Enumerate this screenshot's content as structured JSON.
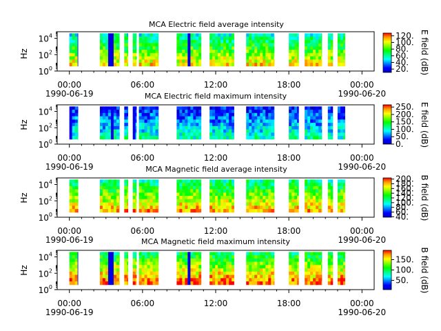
{
  "colors": {
    "colormap": [
      "#0000c8",
      "#0000ff",
      "#0080ff",
      "#00ffff",
      "#00ff80",
      "#00ff00",
      "#80ff00",
      "#ffff00",
      "#ffa000",
      "#ff0000"
    ]
  },
  "chart_data": [
    {
      "type": "heatmap",
      "title": "MCA  Electric field average intensity",
      "ylabel": "Hz",
      "y_scale": "log",
      "y_ticks": [
        {
          "base": "10",
          "exp": "4",
          "value": 10000
        },
        {
          "base": "10",
          "exp": "2",
          "value": 100
        },
        {
          "base": "10",
          "exp": "0",
          "value": 1
        }
      ],
      "colorbar_label": "E field (dB)",
      "colorbar_ticks": [
        "120.",
        "100.",
        "80.",
        "60.",
        "40.",
        "20."
      ],
      "colorbar_tick_values": [
        120,
        100,
        80,
        60,
        40,
        20
      ],
      "clim": [
        10,
        128
      ],
      "bias": 0.0
    },
    {
      "type": "heatmap",
      "title": "MCA  Electric field maximum intensity",
      "ylabel": "Hz",
      "y_scale": "log",
      "y_ticks": [
        {
          "base": "10",
          "exp": "4",
          "value": 10000
        },
        {
          "base": "10",
          "exp": "2",
          "value": 100
        },
        {
          "base": "10",
          "exp": "0",
          "value": 1
        }
      ],
      "colorbar_label": "E field (dB)",
      "colorbar_ticks": [
        "250.",
        "200.",
        "150.",
        "100.",
        "50.",
        "0."
      ],
      "colorbar_tick_values": [
        250,
        200,
        150,
        100,
        50,
        0
      ],
      "clim": [
        0,
        265
      ],
      "bias": -0.28
    },
    {
      "type": "heatmap",
      "title": "MCA  Magnetic field average intensity",
      "ylabel": "Hz",
      "y_scale": "log",
      "y_ticks": [
        {
          "base": "10",
          "exp": "4",
          "value": 10000
        },
        {
          "base": "10",
          "exp": "2",
          "value": 100
        },
        {
          "base": "10",
          "exp": "0",
          "value": 1
        }
      ],
      "colorbar_label": "B field (dB)",
      "colorbar_ticks": [
        "200.",
        "180.",
        "160.",
        "140.",
        "120.",
        "100.",
        "80.",
        "60.",
        "40."
      ],
      "colorbar_tick_values": [
        200,
        180,
        160,
        140,
        120,
        100,
        80,
        60,
        40
      ],
      "clim": [
        38,
        205
      ],
      "bias": 0.05
    },
    {
      "type": "heatmap",
      "title": "MCA  Magnetic field maximum intensity",
      "ylabel": "Hz",
      "y_scale": "log",
      "y_ticks": [
        {
          "base": "10",
          "exp": "4",
          "value": 10000
        },
        {
          "base": "10",
          "exp": "2",
          "value": 100
        },
        {
          "base": "10",
          "exp": "0",
          "value": 1
        }
      ],
      "colorbar_label": "B field (dB)",
      "colorbar_ticks": [
        "150.",
        "100.",
        "50."
      ],
      "colorbar_tick_values": [
        150,
        100,
        50
      ],
      "clim": [
        5,
        195
      ],
      "bias": 0.1
    }
  ],
  "x_axis": {
    "range_hours": [
      -1,
      25
    ],
    "major_ticks": [
      {
        "hour": 0,
        "label": "00:00",
        "date": "1990-06-19"
      },
      {
        "hour": 6,
        "label": "06:00",
        "date": ""
      },
      {
        "hour": 12,
        "label": "12:00",
        "date": ""
      },
      {
        "hour": 18,
        "label": "18:00",
        "date": ""
      },
      {
        "hour": 24,
        "label": "00:00",
        "date": "1990-06-20"
      }
    ]
  },
  "data_segments_hours": [
    [
      0,
      0.7
    ],
    [
      2.5,
      4.1
    ],
    [
      4.5,
      4.8
    ],
    [
      5.2,
      5.5
    ],
    [
      5.7,
      7.3
    ],
    [
      8.8,
      10.8
    ],
    [
      11.5,
      13.5
    ],
    [
      14.5,
      16.8
    ],
    [
      18,
      18.8
    ],
    [
      19.3,
      20.7
    ],
    [
      21.2,
      21.6
    ],
    [
      22,
      22.6
    ]
  ]
}
